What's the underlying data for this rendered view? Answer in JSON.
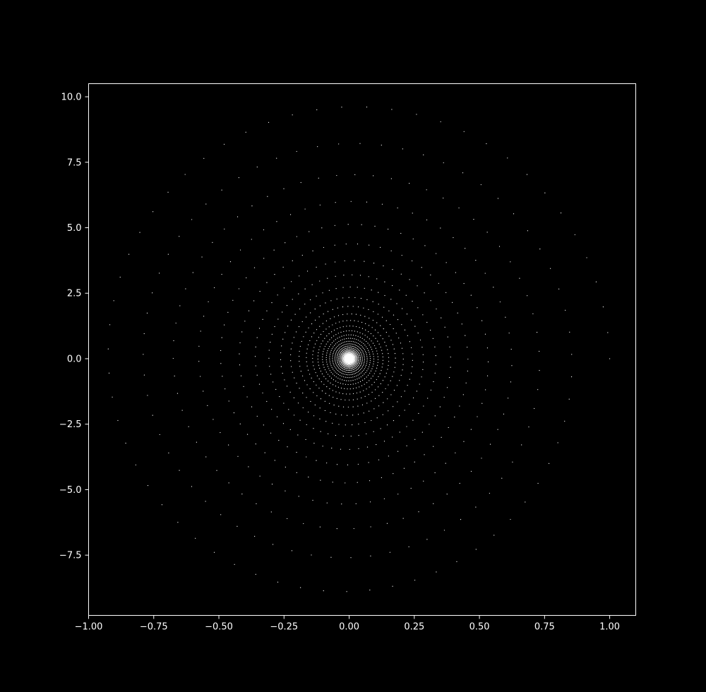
{
  "chart_data": {
    "type": "scatter",
    "title": "",
    "xlabel": "",
    "ylabel": "",
    "xlim": [
      -1.0,
      1.1
    ],
    "ylim": [
      -9.8,
      10.5
    ],
    "x_ticks": [
      {
        "value": -1.0,
        "label": "−1.00"
      },
      {
        "value": -0.75,
        "label": "−0.75"
      },
      {
        "value": -0.5,
        "label": "−0.50"
      },
      {
        "value": -0.25,
        "label": "−0.25"
      },
      {
        "value": 0.0,
        "label": "0.00"
      },
      {
        "value": 0.25,
        "label": "0.25"
      },
      {
        "value": 0.5,
        "label": "0.50"
      },
      {
        "value": 0.75,
        "label": "0.75"
      },
      {
        "value": 1.0,
        "label": "1.00"
      }
    ],
    "y_ticks": [
      {
        "value": 10.0,
        "label": "10.0"
      },
      {
        "value": 7.5,
        "label": "7.5"
      },
      {
        "value": 5.0,
        "label": "5.0"
      },
      {
        "value": 2.5,
        "label": "2.5"
      },
      {
        "value": 0.0,
        "label": "0.0"
      },
      {
        "value": -2.5,
        "label": "−2.5"
      },
      {
        "value": -5.0,
        "label": "−5.0"
      },
      {
        "value": -7.5,
        "label": "−7.5"
      }
    ],
    "series": [
      {
        "x_expression": "exp(-t/40) * cos(t)",
        "y_expression": "10 * exp(-t/40) * sin(t)",
        "t_range": [
          0,
          250
        ],
        "n_points": 2500,
        "start_point": [
          1.0,
          0.0
        ]
      }
    ],
    "grid": false,
    "legend": "none",
    "colors": {
      "background": "#000000",
      "axes": "#ffffff",
      "marker": "#ffffff"
    }
  }
}
